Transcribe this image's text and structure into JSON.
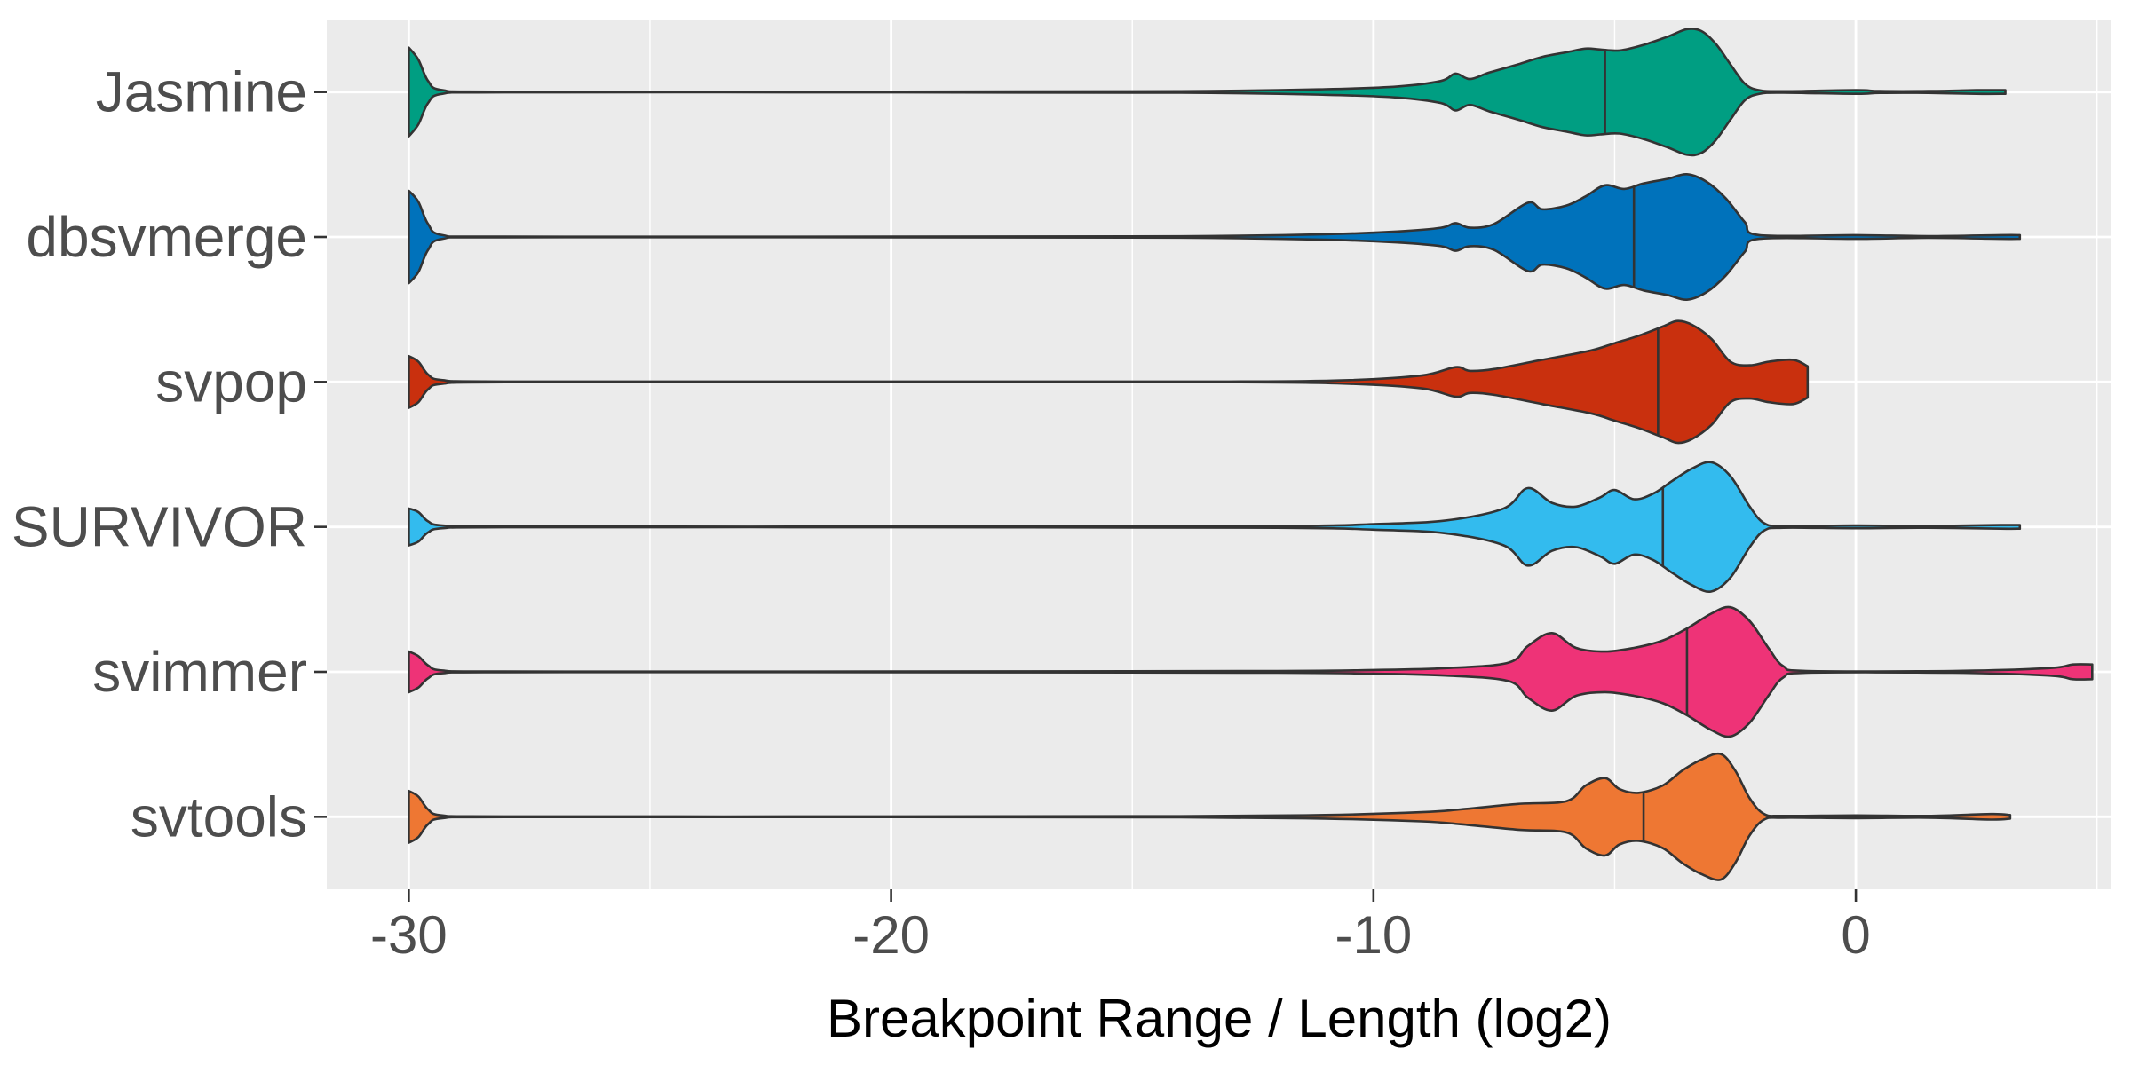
{
  "chart_data": {
    "type": "violin",
    "title": "",
    "xlabel": "Breakpoint Range / Length (log2)",
    "ylabel": "",
    "xlim": [
      -31.7,
      5.3
    ],
    "x_ticks": [
      -30,
      -20,
      -10,
      0
    ],
    "x_tick_labels": [
      "-30",
      "-20",
      "-10",
      "0"
    ],
    "grid": true,
    "legend": "none",
    "background": "#EBEBEB",
    "categories": [
      "Jasmine",
      "dbsvmerge",
      "svpop",
      "SURVIVOR",
      "svimmer",
      "svtools"
    ],
    "series": [
      {
        "name": "Jasmine",
        "color": "#009E82",
        "median": -5.2,
        "range": [
          -30,
          3.1
        ],
        "density": [
          [
            -30,
            0.48
          ],
          [
            -29.8,
            0.35
          ],
          [
            -29.6,
            0.12
          ],
          [
            -29.3,
            0.02
          ],
          [
            -28,
            0.004
          ],
          [
            -20,
            0.004
          ],
          [
            -14,
            0.008
          ],
          [
            -11,
            0.03
          ],
          [
            -9.5,
            0.06
          ],
          [
            -8.6,
            0.12
          ],
          [
            -8.3,
            0.2
          ],
          [
            -8.0,
            0.14
          ],
          [
            -7.6,
            0.21
          ],
          [
            -7.0,
            0.3
          ],
          [
            -6.5,
            0.38
          ],
          [
            -6.0,
            0.43
          ],
          [
            -5.6,
            0.47
          ],
          [
            -5.3,
            0.46
          ],
          [
            -4.9,
            0.45
          ],
          [
            -4.4,
            0.51
          ],
          [
            -3.9,
            0.6
          ],
          [
            -3.5,
            0.68
          ],
          [
            -3.2,
            0.66
          ],
          [
            -2.9,
            0.52
          ],
          [
            -2.6,
            0.3
          ],
          [
            -2.3,
            0.09
          ],
          [
            -2.0,
            0.02
          ],
          [
            -1.5,
            0.008
          ],
          [
            0.0,
            0.02
          ],
          [
            0.5,
            0.01
          ],
          [
            1.5,
            0.01
          ],
          [
            2.5,
            0.02
          ],
          [
            3.1,
            0.02
          ]
        ]
      },
      {
        "name": "dbsvmerge",
        "color": "#0072BB",
        "median": -4.6,
        "range": [
          -30,
          3.4
        ],
        "density": [
          [
            -30,
            0.5
          ],
          [
            -29.8,
            0.38
          ],
          [
            -29.6,
            0.14
          ],
          [
            -29.3,
            0.02
          ],
          [
            -28,
            0.004
          ],
          [
            -20,
            0.004
          ],
          [
            -14,
            0.008
          ],
          [
            -11,
            0.03
          ],
          [
            -9.5,
            0.06
          ],
          [
            -8.6,
            0.1
          ],
          [
            -8.3,
            0.15
          ],
          [
            -8.0,
            0.1
          ],
          [
            -7.5,
            0.14
          ],
          [
            -6.8,
            0.37
          ],
          [
            -6.5,
            0.3
          ],
          [
            -6.0,
            0.34
          ],
          [
            -5.6,
            0.44
          ],
          [
            -5.2,
            0.56
          ],
          [
            -4.8,
            0.52
          ],
          [
            -4.4,
            0.58
          ],
          [
            -3.9,
            0.63
          ],
          [
            -3.5,
            0.68
          ],
          [
            -3.1,
            0.6
          ],
          [
            -2.7,
            0.42
          ],
          [
            -2.3,
            0.16
          ],
          [
            -2.0,
            0.02
          ],
          [
            0.0,
            0.02
          ],
          [
            1.5,
            0.01
          ],
          [
            3.0,
            0.02
          ],
          [
            3.4,
            0.02
          ]
        ]
      },
      {
        "name": "svpop",
        "color": "#C9300E",
        "median": -4.1,
        "range": [
          -30,
          -1.0
        ],
        "density": [
          [
            -30,
            0.28
          ],
          [
            -29.8,
            0.22
          ],
          [
            -29.6,
            0.08
          ],
          [
            -29.3,
            0.02
          ],
          [
            -28,
            0.004
          ],
          [
            -20,
            0.004
          ],
          [
            -13,
            0.004
          ],
          [
            -10.5,
            0.02
          ],
          [
            -9.0,
            0.07
          ],
          [
            -8.3,
            0.16
          ],
          [
            -8.0,
            0.12
          ],
          [
            -7.5,
            0.14
          ],
          [
            -6.5,
            0.24
          ],
          [
            -5.5,
            0.34
          ],
          [
            -5.0,
            0.42
          ],
          [
            -4.5,
            0.5
          ],
          [
            -4.0,
            0.6
          ],
          [
            -3.7,
            0.66
          ],
          [
            -3.4,
            0.62
          ],
          [
            -3.0,
            0.47
          ],
          [
            -2.6,
            0.22
          ],
          [
            -2.2,
            0.18
          ],
          [
            -1.8,
            0.22
          ],
          [
            -1.3,
            0.24
          ],
          [
            -1.0,
            0.17
          ]
        ]
      },
      {
        "name": "SURVIVOR",
        "color": "#33BBEE",
        "median": -4.0,
        "range": [
          -30,
          3.4
        ],
        "density": [
          [
            -30,
            0.2
          ],
          [
            -29.8,
            0.16
          ],
          [
            -29.6,
            0.06
          ],
          [
            -29.3,
            0.015
          ],
          [
            -28,
            0.004
          ],
          [
            -20,
            0.004
          ],
          [
            -12,
            0.01
          ],
          [
            -10,
            0.03
          ],
          [
            -8.5,
            0.07
          ],
          [
            -7.3,
            0.2
          ],
          [
            -6.8,
            0.42
          ],
          [
            -6.3,
            0.26
          ],
          [
            -5.8,
            0.22
          ],
          [
            -5.3,
            0.32
          ],
          [
            -5.0,
            0.4
          ],
          [
            -4.6,
            0.3
          ],
          [
            -4.2,
            0.36
          ],
          [
            -3.8,
            0.5
          ],
          [
            -3.4,
            0.63
          ],
          [
            -3.0,
            0.7
          ],
          [
            -2.6,
            0.55
          ],
          [
            -2.2,
            0.22
          ],
          [
            -1.9,
            0.04
          ],
          [
            -1.5,
            0.01
          ],
          [
            0.0,
            0.015
          ],
          [
            1.5,
            0.01
          ],
          [
            3.0,
            0.02
          ],
          [
            3.4,
            0.02
          ]
        ]
      },
      {
        "name": "svimmer",
        "color": "#EE3377",
        "median": -3.5,
        "range": [
          -30,
          4.9
        ],
        "density": [
          [
            -30,
            0.22
          ],
          [
            -29.8,
            0.17
          ],
          [
            -29.6,
            0.07
          ],
          [
            -29.3,
            0.015
          ],
          [
            -28,
            0.004
          ],
          [
            -20,
            0.004
          ],
          [
            -12,
            0.01
          ],
          [
            -10,
            0.02
          ],
          [
            -8.5,
            0.04
          ],
          [
            -7.2,
            0.1
          ],
          [
            -6.8,
            0.28
          ],
          [
            -6.3,
            0.42
          ],
          [
            -5.8,
            0.26
          ],
          [
            -5.2,
            0.22
          ],
          [
            -4.6,
            0.26
          ],
          [
            -4.0,
            0.34
          ],
          [
            -3.5,
            0.47
          ],
          [
            -3.0,
            0.63
          ],
          [
            -2.6,
            0.7
          ],
          [
            -2.2,
            0.55
          ],
          [
            -1.8,
            0.25
          ],
          [
            -1.5,
            0.06
          ],
          [
            -1.0,
            0.01
          ],
          [
            2.0,
            0.01
          ],
          [
            4.0,
            0.04
          ],
          [
            4.5,
            0.08
          ],
          [
            4.9,
            0.08
          ]
        ]
      },
      {
        "name": "svtools",
        "color": "#EE7733",
        "median": -4.4,
        "range": [
          -30,
          3.2
        ],
        "density": [
          [
            -30,
            0.28
          ],
          [
            -29.8,
            0.22
          ],
          [
            -29.6,
            0.08
          ],
          [
            -29.3,
            0.015
          ],
          [
            -28,
            0.004
          ],
          [
            -20,
            0.004
          ],
          [
            -14,
            0.006
          ],
          [
            -11,
            0.02
          ],
          [
            -9.0,
            0.05
          ],
          [
            -8.2,
            0.08
          ],
          [
            -7.0,
            0.14
          ],
          [
            -6.0,
            0.17
          ],
          [
            -5.6,
            0.34
          ],
          [
            -5.2,
            0.42
          ],
          [
            -4.9,
            0.3
          ],
          [
            -4.5,
            0.26
          ],
          [
            -4.0,
            0.34
          ],
          [
            -3.6,
            0.5
          ],
          [
            -3.2,
            0.62
          ],
          [
            -2.8,
            0.68
          ],
          [
            -2.5,
            0.5
          ],
          [
            -2.2,
            0.2
          ],
          [
            -1.9,
            0.03
          ],
          [
            -1.5,
            0.01
          ],
          [
            0.0,
            0.015
          ],
          [
            1.5,
            0.01
          ],
          [
            2.8,
            0.03
          ],
          [
            3.2,
            0.02
          ]
        ]
      }
    ]
  }
}
